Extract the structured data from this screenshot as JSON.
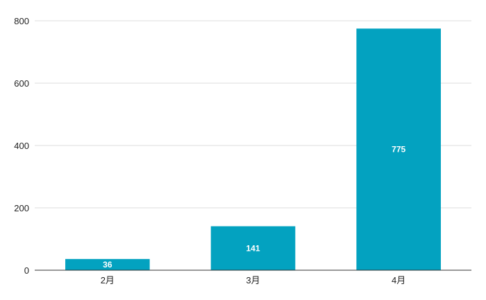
{
  "chart_data": {
    "type": "bar",
    "categories": [
      "2月",
      "3月",
      "4月"
    ],
    "values": [
      36,
      141,
      775
    ],
    "data_labels": [
      "36",
      "141",
      "775"
    ],
    "ylim": [
      0,
      800
    ],
    "yticks": [
      0,
      200,
      400,
      600,
      800
    ],
    "grid": true,
    "legend": "none",
    "bar_color": "#03a2c0",
    "grid_color": "#dddddd",
    "axis_color": "#333333"
  }
}
